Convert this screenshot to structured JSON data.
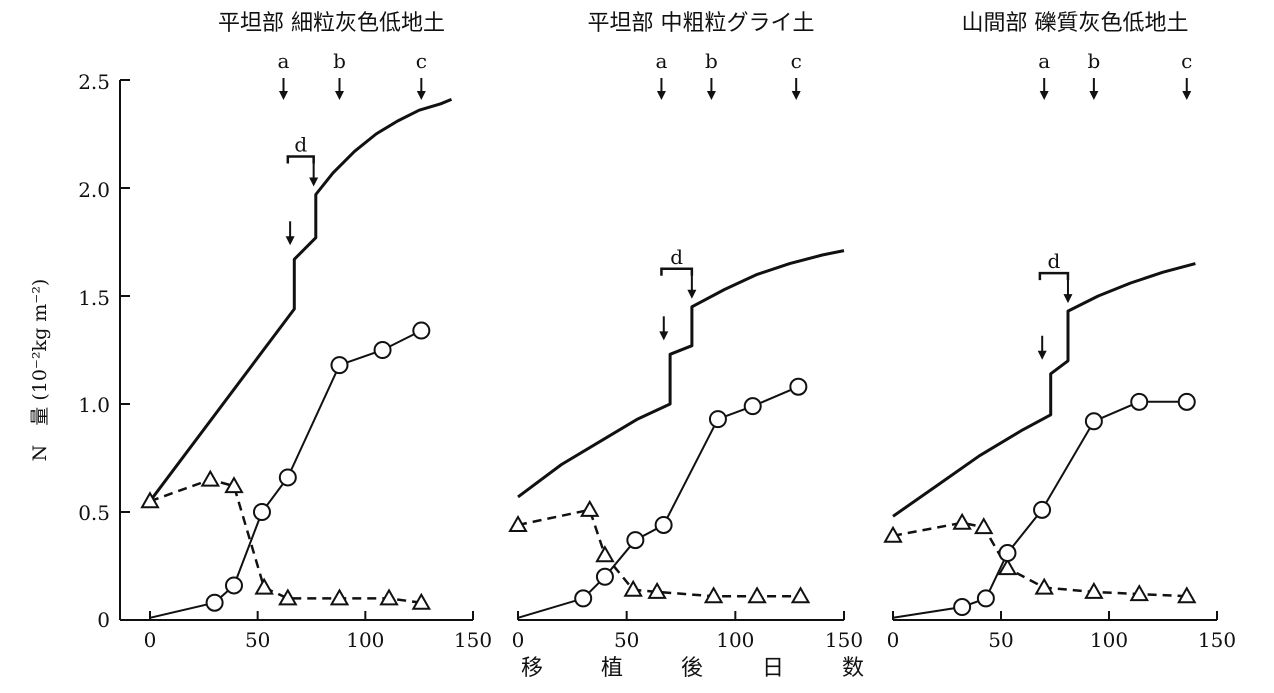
{
  "figure": {
    "ylabel": "N　量 (10⁻²kg m⁻²)",
    "xlabel_chars": [
      "移",
      "植",
      "後",
      "日",
      "数"
    ],
    "y_ticks": [
      "0",
      "0.5",
      "1.0",
      "1.5",
      "2.0",
      "2.5"
    ],
    "x_ticks": [
      "0",
      "50",
      "100",
      "150"
    ]
  },
  "chart_data": [
    {
      "type": "line",
      "title": "平坦部 細粒灰色低地土",
      "xlim": [
        0,
        150
      ],
      "ylim": [
        0,
        2.5
      ],
      "markers": [
        {
          "label": "a",
          "x": 62
        },
        {
          "label": "b",
          "x": 88
        },
        {
          "label": "c",
          "x": 126
        }
      ],
      "d_marker": {
        "label": "d",
        "x1": 64,
        "x2": 76
      },
      "inner_arrow_x": 66,
      "series": [
        {
          "style": "supply_curve",
          "points": [
            [
              0,
              0.55
            ],
            [
              67,
              1.44
            ],
            [
              67,
              1.67
            ],
            [
              77,
              1.77
            ],
            [
              77,
              1.97
            ],
            [
              85,
              2.07
            ],
            [
              95,
              2.17
            ],
            [
              105,
              2.25
            ],
            [
              115,
              2.31
            ],
            [
              125,
              2.36
            ],
            [
              135,
              2.39
            ],
            [
              140,
              2.41
            ]
          ]
        },
        {
          "style": "circle_solid",
          "points": [
            [
              0,
              0.01
            ],
            [
              30,
              0.08
            ],
            [
              39,
              0.16
            ],
            [
              52,
              0.5
            ],
            [
              64,
              0.66
            ],
            [
              88,
              1.18
            ],
            [
              108,
              1.25
            ],
            [
              126,
              1.34
            ]
          ]
        },
        {
          "style": "triangle_dashed",
          "points": [
            [
              0,
              0.55
            ],
            [
              28,
              0.65
            ],
            [
              39,
              0.62
            ],
            [
              53,
              0.15
            ],
            [
              64,
              0.1
            ],
            [
              88,
              0.1
            ],
            [
              111,
              0.1
            ],
            [
              126,
              0.08
            ]
          ]
        }
      ]
    },
    {
      "type": "line",
      "title": "平坦部 中粗粒グライ土",
      "xlim": [
        0,
        150
      ],
      "ylim": [
        0,
        2.5
      ],
      "markers": [
        {
          "label": "a",
          "x": 66
        },
        {
          "label": "b",
          "x": 89
        },
        {
          "label": "c",
          "x": 128
        }
      ],
      "d_marker": {
        "label": "d",
        "x1": 66,
        "x2": 80
      },
      "inner_arrow_x": 68,
      "series": [
        {
          "style": "supply_curve",
          "points": [
            [
              0,
              0.57
            ],
            [
              20,
              0.72
            ],
            [
              40,
              0.84
            ],
            [
              55,
              0.93
            ],
            [
              70,
              1.0
            ],
            [
              70,
              1.23
            ],
            [
              80,
              1.27
            ],
            [
              80,
              1.45
            ],
            [
              95,
              1.53
            ],
            [
              110,
              1.6
            ],
            [
              125,
              1.65
            ],
            [
              140,
              1.69
            ],
            [
              150,
              1.71
            ]
          ]
        },
        {
          "style": "circle_solid",
          "points": [
            [
              0,
              0.01
            ],
            [
              30,
              0.1
            ],
            [
              40,
              0.2
            ],
            [
              54,
              0.37
            ],
            [
              67,
              0.44
            ],
            [
              92,
              0.93
            ],
            [
              108,
              0.99
            ],
            [
              129,
              1.08
            ]
          ]
        },
        {
          "style": "triangle_dashed",
          "points": [
            [
              0,
              0.44
            ],
            [
              33,
              0.51
            ],
            [
              40,
              0.3
            ],
            [
              53,
              0.14
            ],
            [
              64,
              0.13
            ],
            [
              90,
              0.11
            ],
            [
              110,
              0.11
            ],
            [
              130,
              0.11
            ]
          ]
        }
      ]
    },
    {
      "type": "line",
      "title": "山間部 礫質灰色低地土",
      "xlim": [
        0,
        150
      ],
      "ylim": [
        0,
        2.5
      ],
      "markers": [
        {
          "label": "a",
          "x": 70
        },
        {
          "label": "b",
          "x": 93
        },
        {
          "label": "c",
          "x": 136
        }
      ],
      "d_marker": {
        "label": "d",
        "x1": 68,
        "x2": 81
      },
      "inner_arrow_x": 70,
      "series": [
        {
          "style": "supply_curve",
          "points": [
            [
              0,
              0.48
            ],
            [
              20,
              0.62
            ],
            [
              40,
              0.76
            ],
            [
              60,
              0.88
            ],
            [
              73,
              0.95
            ],
            [
              73,
              1.14
            ],
            [
              81,
              1.2
            ],
            [
              81,
              1.43
            ],
            [
              95,
              1.5
            ],
            [
              110,
              1.56
            ],
            [
              125,
              1.61
            ],
            [
              140,
              1.65
            ]
          ]
        },
        {
          "style": "circle_solid",
          "points": [
            [
              0,
              0.01
            ],
            [
              32,
              0.06
            ],
            [
              43,
              0.1
            ],
            [
              53,
              0.31
            ],
            [
              69,
              0.51
            ],
            [
              93,
              0.92
            ],
            [
              114,
              1.01
            ],
            [
              136,
              1.01
            ]
          ]
        },
        {
          "style": "triangle_dashed",
          "points": [
            [
              0,
              0.39
            ],
            [
              32,
              0.45
            ],
            [
              42,
              0.43
            ],
            [
              53,
              0.24
            ],
            [
              70,
              0.15
            ],
            [
              93,
              0.13
            ],
            [
              114,
              0.12
            ],
            [
              136,
              0.11
            ]
          ]
        }
      ]
    }
  ]
}
